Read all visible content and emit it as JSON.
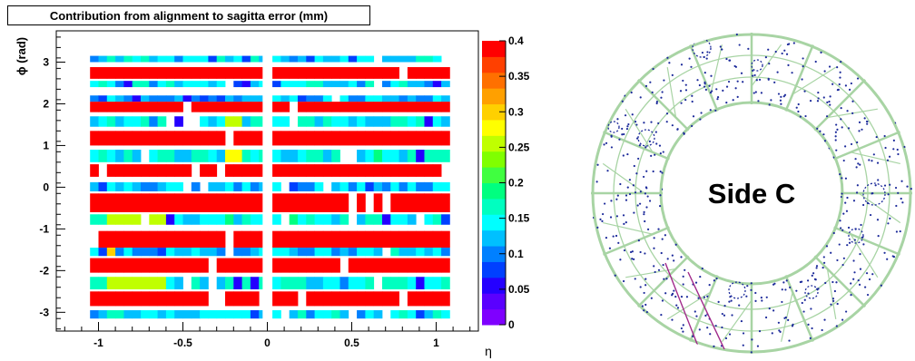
{
  "chart_data": {
    "type": "heatmap",
    "title": "Contribution from alignment to sagitta error (mm)",
    "xlabel": "η",
    "ylabel": "ϕ (rad)",
    "xlim": [
      -1.25,
      1.25
    ],
    "ylim": [
      -3.45,
      3.75
    ],
    "zlim": [
      0,
      0.4
    ],
    "x_ticks": [
      -1,
      -0.5,
      0,
      0.5,
      1
    ],
    "x_tick_labels": [
      "-1",
      "-0.5",
      "0",
      "0.5",
      "1"
    ],
    "y_ticks": [
      -3,
      -2,
      -1,
      0,
      1,
      2,
      3
    ],
    "y_tick_labels": [
      "-3",
      "-2",
      "-1",
      "0",
      "1",
      "2",
      "3"
    ],
    "colorbar_ticks": [
      0,
      0.05,
      0.1,
      0.15,
      0.2,
      0.25,
      0.3,
      0.35,
      0.4
    ],
    "colorbar_tick_labels": [
      "0",
      "0.05",
      "0.1",
      "0.15",
      "0.2",
      "0.25",
      "0.3",
      "0.35",
      "0.4"
    ],
    "rows": [
      {
        "phi_min": 3.0,
        "phi_max": 3.15,
        "value": 0.14
      },
      {
        "phi_min": 2.6,
        "phi_max": 2.88,
        "value": 0.4
      },
      {
        "phi_min": 2.4,
        "phi_max": 2.55,
        "value": 0.14
      },
      {
        "phi_min": 2.05,
        "phi_max": 2.2,
        "value": 0.12
      },
      {
        "phi_min": 1.8,
        "phi_max": 2.05,
        "value": 0.4
      },
      {
        "phi_min": 1.45,
        "phi_max": 1.7,
        "value": 0.15
      },
      {
        "phi_min": 1.0,
        "phi_max": 1.35,
        "value": 0.4
      },
      {
        "phi_min": 0.6,
        "phi_max": 0.9,
        "value": 0.15
      },
      {
        "phi_min": 0.25,
        "phi_max": 0.55,
        "value": 0.4
      },
      {
        "phi_min": -0.1,
        "phi_max": 0.12,
        "value": 0.13
      },
      {
        "phi_min": -0.6,
        "phi_max": -0.15,
        "value": 0.4
      },
      {
        "phi_min": -0.9,
        "phi_max": -0.65,
        "value": 0.16
      },
      {
        "phi_min": -1.45,
        "phi_max": -1.05,
        "value": 0.4
      },
      {
        "phi_min": -1.65,
        "phi_max": -1.45,
        "value": 0.13
      },
      {
        "phi_min": -2.05,
        "phi_max": -1.7,
        "value": 0.4
      },
      {
        "phi_min": -2.45,
        "phi_max": -2.15,
        "value": 0.15
      },
      {
        "phi_min": -2.85,
        "phi_max": -2.5,
        "value": 0.4
      },
      {
        "phi_min": -3.15,
        "phi_max": -2.95,
        "value": 0.14
      }
    ],
    "eta_segments": [
      [
        -1.05,
        -0.03
      ],
      [
        0.03,
        1.08
      ]
    ],
    "highlights": [
      {
        "eta": [
          -0.25,
          -0.15
        ],
        "phi": [
          1.45,
          1.7
        ],
        "value": 0.25
      },
      {
        "eta": [
          -0.25,
          -0.15
        ],
        "phi": [
          0.6,
          0.9
        ],
        "value": 0.27
      },
      {
        "eta": [
          -0.95,
          -0.88
        ],
        "phi": [
          -1.65,
          -1.45
        ],
        "value": 0.3
      },
      {
        "eta": [
          0.85,
          0.92
        ],
        "phi": [
          -1.65,
          -1.45
        ],
        "value": 0.3
      },
      {
        "eta": [
          -0.95,
          -0.6
        ],
        "phi": [
          -2.45,
          -2.15
        ],
        "value": 0.25
      },
      {
        "eta": [
          -0.95,
          -0.6
        ],
        "phi": [
          -0.9,
          -0.65
        ],
        "value": 0.25
      }
    ]
  },
  "detector_image": {
    "label": "Side C",
    "ring_color": "#a8d4a4",
    "hit_color": "#1c2a9a"
  }
}
